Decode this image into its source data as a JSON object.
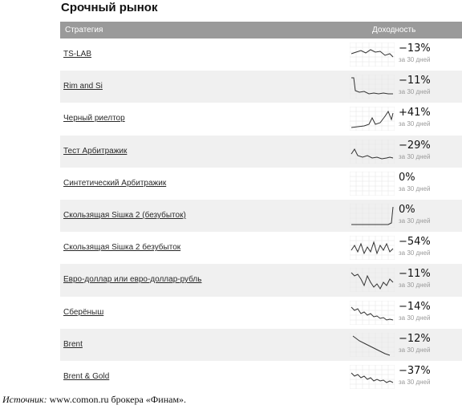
{
  "title": "Срочный рынок",
  "header": {
    "strategy": "Стратегия",
    "yield": "Доходность"
  },
  "rows": [
    {
      "name": "TS-LAB",
      "pct": "−13%",
      "sub": "за 30 дней"
    },
    {
      "name": "Rim and Si",
      "pct": "−11%",
      "sub": "за 30 дней"
    },
    {
      "name": "Черный риелтор",
      "pct": "+41%",
      "sub": "за 30 дней"
    },
    {
      "name": "Тест Арбитражик",
      "pct": "−29%",
      "sub": "за 30 дней"
    },
    {
      "name": "Синтетический Арбитражик",
      "pct": "0%",
      "sub": "за 30 дней"
    },
    {
      "name": "Скользящая Siшка 2 (безубыток)",
      "pct": "0%",
      "sub": "за 30 дней"
    },
    {
      "name": "Скользящая Siшка 2 безубыток",
      "pct": "−54%",
      "sub": "за 30 дней"
    },
    {
      "name": "Евро-доллар или евро-доллар-рубль",
      "pct": "−11%",
      "sub": "за 30 дней"
    },
    {
      "name": "Сберёныш",
      "pct": "−14%",
      "sub": "за 30 дней"
    },
    {
      "name": "Brent",
      "pct": "−12%",
      "sub": "за 30 дней"
    },
    {
      "name": "Brent & Gold",
      "pct": "−37%",
      "sub": "за 30 дней"
    }
  ],
  "source": {
    "label": "Источник:",
    "text": " www.comon.ru брокера «Финам»."
  }
}
